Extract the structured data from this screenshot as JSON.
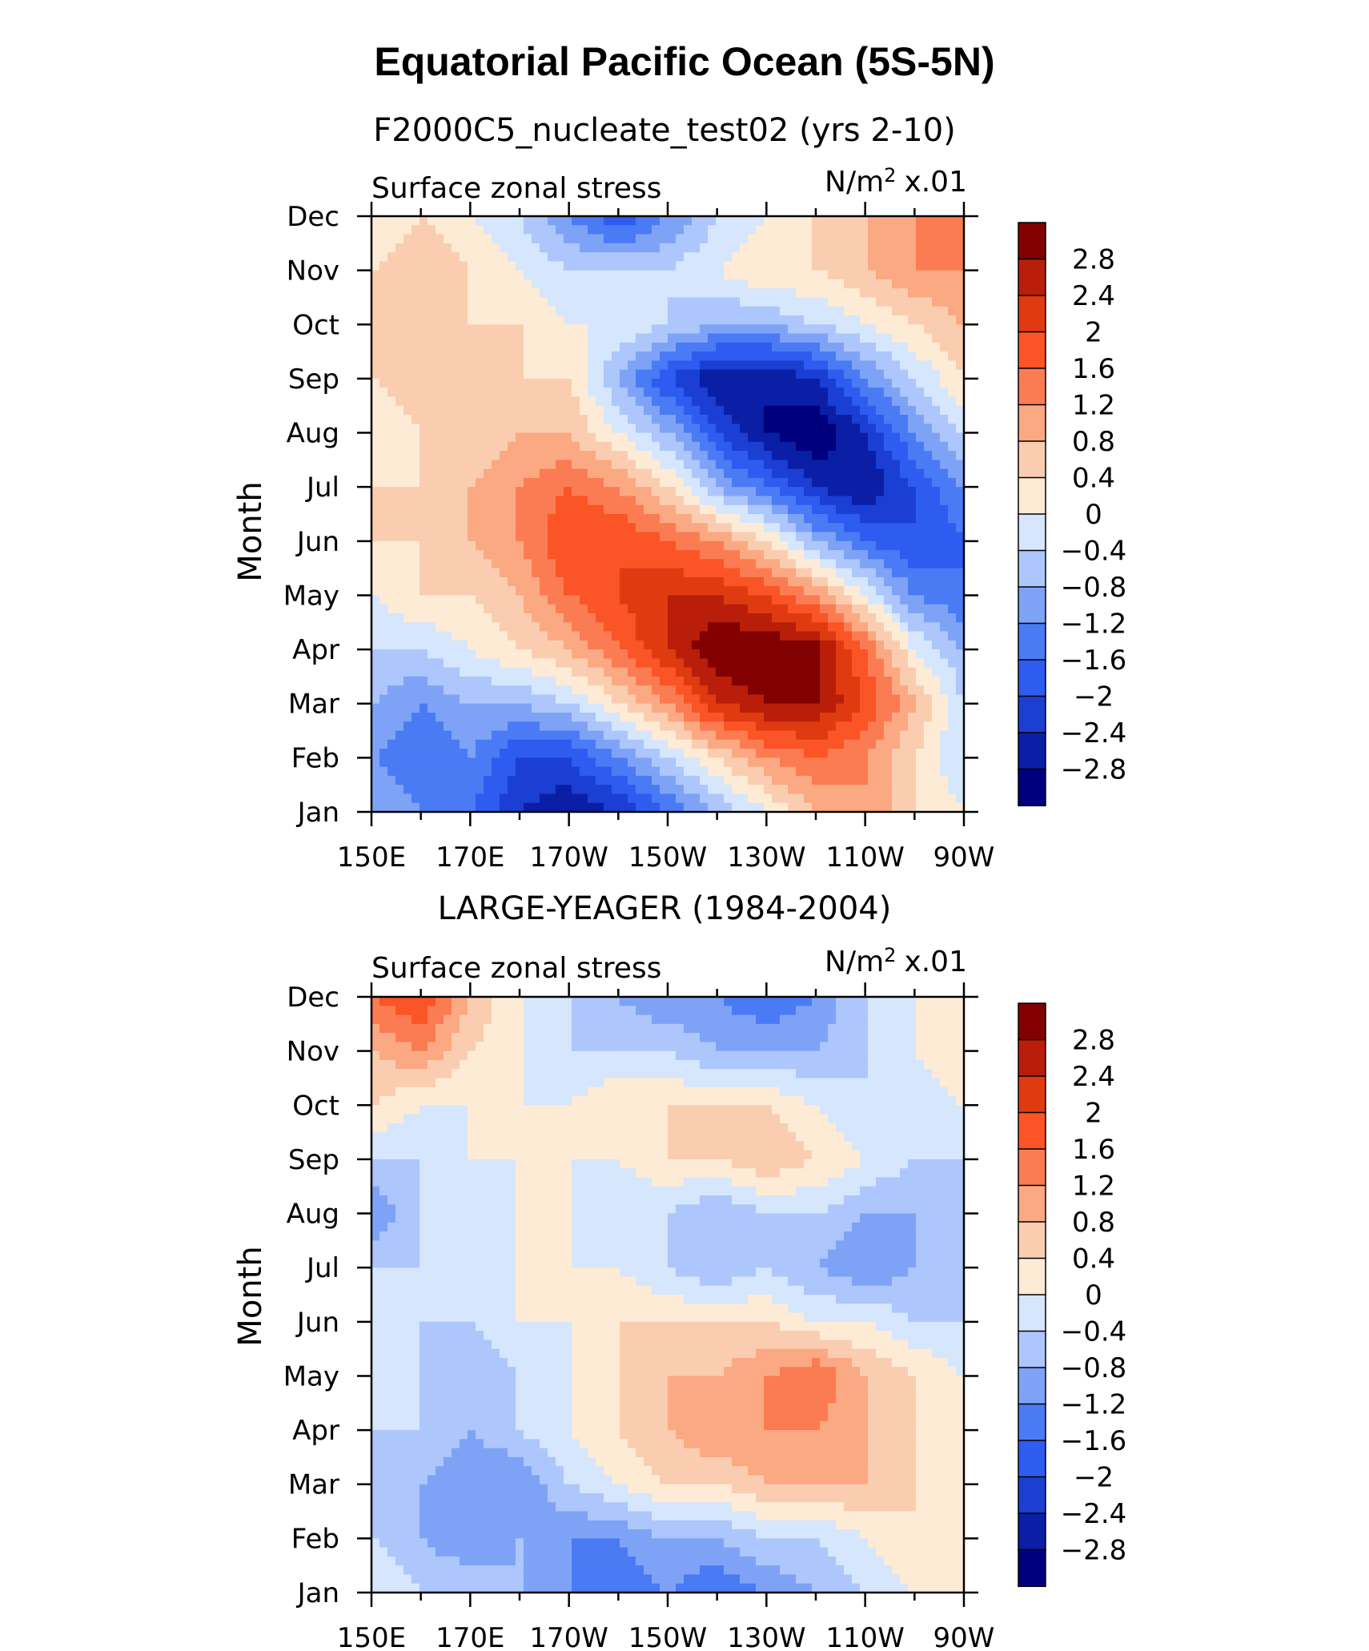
{
  "title": "Equatorial Pacific Ocean (5S-5N)",
  "panels": [
    {
      "title": "F2000C5_nucleate_test02 (yrs 2-10)",
      "left_label": "Surface zonal stress",
      "units": "N/m",
      "units_sup": "2",
      "units_suffix": "x.01",
      "ylabel": "Month"
    },
    {
      "title": "LARGE-YEAGER (1984-2004)",
      "left_label": "Surface zonal stress",
      "units": "N/m",
      "units_sup": "2",
      "units_suffix": "x.01",
      "ylabel": "Month"
    }
  ],
  "chart_data": [
    {
      "type": "heatmap",
      "title": "F2000C5_nucleate_test02 (yrs 2-10)",
      "ylabel": "Month",
      "x_ticks": [
        "150E",
        "170E",
        "170W",
        "150W",
        "130W",
        "110W",
        "90W"
      ],
      "y_ticks": [
        "Jan",
        "Feb",
        "Mar",
        "Apr",
        "May",
        "Jun",
        "Jul",
        "Aug",
        "Sep",
        "Oct",
        "Nov",
        "Dec"
      ],
      "x_lon": [
        150,
        160,
        170,
        180,
        190,
        200,
        210,
        220,
        230,
        240,
        250,
        260,
        270
      ],
      "z": [
        [
          -0.8,
          -1.2,
          -1.6,
          -2.4,
          -2.8,
          -2.4,
          -1.6,
          -0.8,
          0.0,
          0.8,
          1.2,
          0.4,
          0.0
        ],
        [
          -1.2,
          -1.6,
          -1.2,
          -2.0,
          -2.0,
          -1.2,
          -0.4,
          0.4,
          1.2,
          1.6,
          1.2,
          0.4,
          -0.4
        ],
        [
          -0.8,
          -1.2,
          -0.8,
          -0.8,
          -0.4,
          0.4,
          1.2,
          2.4,
          2.8,
          2.8,
          2.0,
          0.8,
          -0.4
        ],
        [
          -0.4,
          -0.4,
          0.0,
          0.4,
          0.8,
          1.6,
          2.4,
          3.2,
          3.2,
          3.0,
          1.6,
          0.0,
          -0.8
        ],
        [
          0.0,
          0.4,
          0.4,
          0.8,
          1.6,
          2.0,
          2.4,
          2.4,
          2.0,
          1.2,
          0.0,
          -1.2,
          -1.6
        ],
        [
          0.4,
          0.4,
          0.8,
          1.2,
          2.0,
          2.0,
          1.6,
          1.2,
          0.4,
          -0.8,
          -1.6,
          -2.0,
          -1.6
        ],
        [
          0.4,
          0.4,
          0.8,
          1.2,
          1.6,
          1.2,
          0.4,
          -0.8,
          -1.6,
          -2.4,
          -2.8,
          -2.0,
          -1.2
        ],
        [
          0.0,
          0.4,
          0.4,
          0.8,
          0.8,
          0.0,
          -0.8,
          -2.0,
          -2.8,
          -3.2,
          -2.4,
          -1.2,
          -0.4
        ],
        [
          0.4,
          0.8,
          0.4,
          0.4,
          0.4,
          -0.8,
          -2.0,
          -2.8,
          -2.8,
          -2.4,
          -1.2,
          -0.4,
          0.4
        ],
        [
          0.4,
          0.4,
          0.4,
          0.4,
          0.0,
          0.0,
          -0.4,
          -0.8,
          -0.8,
          -0.4,
          0.0,
          0.4,
          0.8
        ],
        [
          0.4,
          0.8,
          0.4,
          0.0,
          -0.4,
          -0.4,
          -0.4,
          0.0,
          0.4,
          0.4,
          0.8,
          1.2,
          1.2
        ],
        [
          0.0,
          0.4,
          0.0,
          -0.4,
          -1.2,
          -2.0,
          -1.2,
          -0.4,
          0.0,
          0.4,
          0.8,
          1.2,
          1.2
        ]
      ],
      "levels": [
        -3.2,
        -2.8,
        -2.4,
        -2.0,
        -1.6,
        -1.2,
        -0.8,
        -0.4,
        0.0,
        0.4,
        0.8,
        1.2,
        1.6,
        2.0,
        2.4,
        2.8,
        3.2
      ],
      "colorbar_labels": [
        "2.8",
        "2.4",
        "2",
        "1.6",
        "1.2",
        "0.8",
        "0.4",
        "0",
        "-0.4",
        "-0.8",
        "-1.2",
        "-1.6",
        "-2",
        "-2.4",
        "-2.8"
      ]
    },
    {
      "type": "heatmap",
      "title": "LARGE-YEAGER (1984-2004)",
      "ylabel": "Month",
      "x_ticks": [
        "150E",
        "170E",
        "170W",
        "150W",
        "130W",
        "110W",
        "90W"
      ],
      "y_ticks": [
        "Jan",
        "Feb",
        "Mar",
        "Apr",
        "May",
        "Jun",
        "Jul",
        "Aug",
        "Sep",
        "Oct",
        "Nov",
        "Dec"
      ],
      "x_lon": [
        150,
        160,
        170,
        180,
        190,
        200,
        210,
        220,
        230,
        240,
        250,
        260,
        270
      ],
      "z": [
        [
          0.0,
          -0.4,
          -0.4,
          -0.8,
          -1.2,
          -1.6,
          -1.2,
          -1.6,
          -1.2,
          -0.8,
          -0.4,
          0.0,
          0.4
        ],
        [
          -0.4,
          -0.8,
          -1.2,
          -0.8,
          -1.2,
          -1.2,
          -0.8,
          -0.8,
          -0.4,
          -0.4,
          0.0,
          0.4,
          0.4
        ],
        [
          -0.4,
          -0.8,
          -1.2,
          -1.2,
          -0.4,
          0.0,
          0.4,
          0.4,
          0.8,
          0.8,
          0.8,
          0.4,
          0.0
        ],
        [
          -0.4,
          -0.4,
          -0.8,
          -0.4,
          0.0,
          0.4,
          0.8,
          1.2,
          1.2,
          1.2,
          0.8,
          0.4,
          0.0
        ],
        [
          -0.4,
          -0.4,
          -0.8,
          -0.4,
          0.0,
          0.4,
          0.8,
          0.8,
          1.2,
          1.6,
          0.8,
          0.4,
          0.0
        ],
        [
          -0.4,
          -0.4,
          -0.4,
          0.0,
          0.0,
          0.4,
          0.4,
          0.4,
          0.4,
          0.0,
          0.0,
          -0.4,
          -0.4
        ],
        [
          -0.4,
          -0.4,
          -0.4,
          0.0,
          0.0,
          0.0,
          -0.4,
          -0.8,
          -0.4,
          -0.8,
          -1.2,
          -0.8,
          -0.4
        ],
        [
          -1.2,
          -0.4,
          -0.4,
          0.0,
          0.0,
          -0.4,
          -0.4,
          -0.8,
          -0.4,
          -0.4,
          -0.8,
          -0.8,
          -0.4
        ],
        [
          -0.4,
          -0.4,
          0.0,
          0.0,
          0.0,
          0.0,
          0.4,
          0.4,
          0.8,
          0.4,
          0.0,
          -0.4,
          -0.4
        ],
        [
          0.4,
          0.0,
          0.0,
          0.0,
          0.0,
          0.4,
          0.4,
          0.4,
          0.4,
          0.0,
          -0.4,
          -0.4,
          0.0
        ],
        [
          0.8,
          1.2,
          0.4,
          0.0,
          -0.4,
          -0.4,
          -0.4,
          -0.8,
          -0.8,
          -0.8,
          -0.4,
          0.0,
          0.4
        ],
        [
          1.6,
          2.0,
          0.8,
          0.0,
          -0.4,
          -0.8,
          -1.2,
          -1.2,
          -1.6,
          -1.2,
          -0.4,
          0.0,
          0.0
        ]
      ],
      "levels": [
        -3.2,
        -2.8,
        -2.4,
        -2.0,
        -1.6,
        -1.2,
        -0.8,
        -0.4,
        0.0,
        0.4,
        0.8,
        1.2,
        1.6,
        2.0,
        2.4,
        2.8,
        3.2
      ],
      "colorbar_labels": [
        "2.8",
        "2.4",
        "2",
        "1.6",
        "1.2",
        "0.8",
        "0.4",
        "0",
        "-0.4",
        "-0.8",
        "-1.2",
        "-1.6",
        "-2",
        "-2.4",
        "-2.8"
      ]
    }
  ],
  "colors": [
    "#00007f",
    "#0a1fa6",
    "#1a3fd2",
    "#2e5cf0",
    "#4a7bf5",
    "#7ea3f6",
    "#adc6fb",
    "#d6e6fc",
    "#fdebd6",
    "#fbcdb0",
    "#fba982",
    "#fb7c52",
    "#fb5426",
    "#e03b10",
    "#b81e0a",
    "#820000"
  ]
}
